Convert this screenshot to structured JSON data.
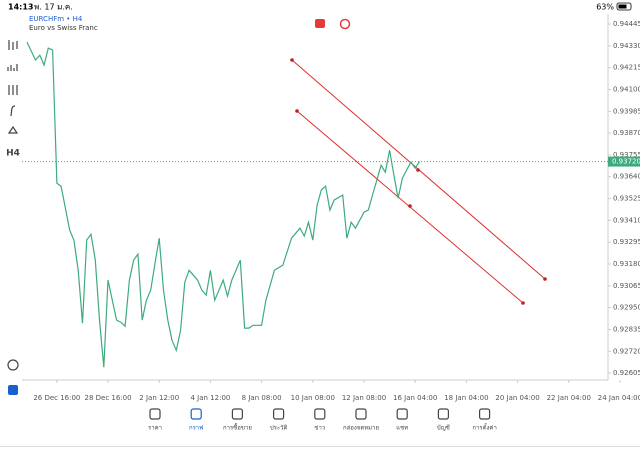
{
  "status_bar": {
    "time": "14:13",
    "date": "พ. 17 ม.ค.",
    "battery": "63%"
  },
  "symbol": {
    "name": "EURCHFm • H4",
    "description": "Euro vs Swiss Franc"
  },
  "toolbar": {
    "timeframe": "H4"
  },
  "chart_data": {
    "type": "line",
    "color": "#3dab7d",
    "x": [
      -7,
      -5,
      -4,
      -3,
      -2,
      -1,
      0,
      1,
      3,
      4,
      5,
      6,
      7,
      8,
      9,
      10,
      11,
      12,
      13,
      14,
      15,
      16,
      17,
      18,
      19,
      20,
      21,
      22,
      23,
      24,
      25,
      26,
      27,
      28,
      29,
      30,
      31,
      33,
      34,
      35,
      36,
      37,
      39,
      40,
      41,
      43,
      44,
      45,
      46,
      48,
      49,
      51,
      53,
      55,
      57,
      58,
      59,
      60,
      61,
      62,
      63,
      64,
      65,
      67,
      68,
      69,
      70,
      72,
      73,
      74,
      75,
      76,
      77,
      78,
      79,
      80,
      81,
      83,
      84,
      85
    ],
    "values": [
      0.9435,
      0.94255,
      0.94281,
      0.94229,
      0.94318,
      0.94308,
      0.93606,
      0.9359,
      0.93358,
      0.93306,
      0.93147,
      0.92868,
      0.93306,
      0.93337,
      0.932,
      0.92884,
      0.92636,
      0.93095,
      0.92989,
      0.92884,
      0.92873,
      0.92852,
      0.93095,
      0.932,
      0.93232,
      0.92884,
      0.92989,
      0.93042,
      0.93184,
      0.93316,
      0.93042,
      0.92884,
      0.92778,
      0.92725,
      0.92831,
      0.93084,
      0.93147,
      0.93095,
      0.93042,
      0.93016,
      0.93147,
      0.92989,
      0.93095,
      0.9301,
      0.93095,
      0.932,
      0.92842,
      0.92842,
      0.92857,
      0.92857,
      0.92989,
      0.93147,
      0.93174,
      0.93316,
      0.93369,
      0.93327,
      0.934,
      0.93306,
      0.9349,
      0.9357,
      0.9359,
      0.93464,
      0.93517,
      0.93543,
      0.93316,
      0.934,
      0.93369,
      0.93453,
      0.93464,
      0.93543,
      0.93622,
      0.93701,
      0.93664,
      0.9378,
      0.93648,
      0.93527,
      0.93633,
      0.93717,
      0.93685,
      0.9372
    ],
    "xlim": [
      -7,
      129.2
    ],
    "ylim": [
      0.92579,
      0.94498
    ],
    "xticks": [
      {
        "value": 0,
        "label": "26 Dec 16:00"
      },
      {
        "value": 12,
        "label": "28 Dec 16:00"
      },
      {
        "value": 24,
        "label": "2 Jan 12:00"
      },
      {
        "value": 36,
        "label": "4 Jan 12:00"
      },
      {
        "value": 48,
        "label": "8 Jan 08:00"
      },
      {
        "value": 60,
        "label": "10 Jan 08:00"
      },
      {
        "value": 72,
        "label": "12 Jan 08:00"
      },
      {
        "value": 84,
        "label": "16 Jan 04:00"
      },
      {
        "value": 96,
        "label": "18 Jan 04:00"
      },
      {
        "value": 108,
        "label": "20 Jan 04:00"
      },
      {
        "value": 120,
        "label": "22 Jan 04:00"
      },
      {
        "value": 132,
        "label": "24 Jan 04:00"
      }
    ],
    "yticks": [
      {
        "value": 0.94445,
        "label": "0.94445"
      },
      {
        "value": 0.9433,
        "label": "0.94330"
      },
      {
        "value": 0.94215,
        "label": "0.94215"
      },
      {
        "value": 0.941,
        "label": "0.94100"
      },
      {
        "value": 0.93985,
        "label": "0.93985"
      },
      {
        "value": 0.9387,
        "label": "0.93870"
      },
      {
        "value": 0.93755,
        "label": "0.93755"
      },
      {
        "value": 0.9364,
        "label": "0.93640"
      },
      {
        "value": 0.93525,
        "label": "0.93525"
      },
      {
        "value": 0.9341,
        "label": "0.93410"
      },
      {
        "value": 0.93295,
        "label": "0.93295"
      },
      {
        "value": 0.9318,
        "label": "0.93180"
      },
      {
        "value": 0.93065,
        "label": "0.93065"
      },
      {
        "value": 0.9295,
        "label": "0.92950"
      },
      {
        "value": 0.92835,
        "label": "0.92835"
      },
      {
        "value": 0.9272,
        "label": "0.92720"
      },
      {
        "value": 0.92605,
        "label": "0.92605"
      }
    ],
    "last_price": {
      "value": 0.9372,
      "label": "0.93720"
    }
  },
  "bottom_nav": {
    "active": 1,
    "items": [
      "ราคา",
      "กราฟ",
      "การซื้อขาย",
      "ประวัติ",
      "ข่าว",
      "กล่องจดหมาย",
      "แชท",
      "บัญชี",
      "การตั้งค่า"
    ]
  }
}
